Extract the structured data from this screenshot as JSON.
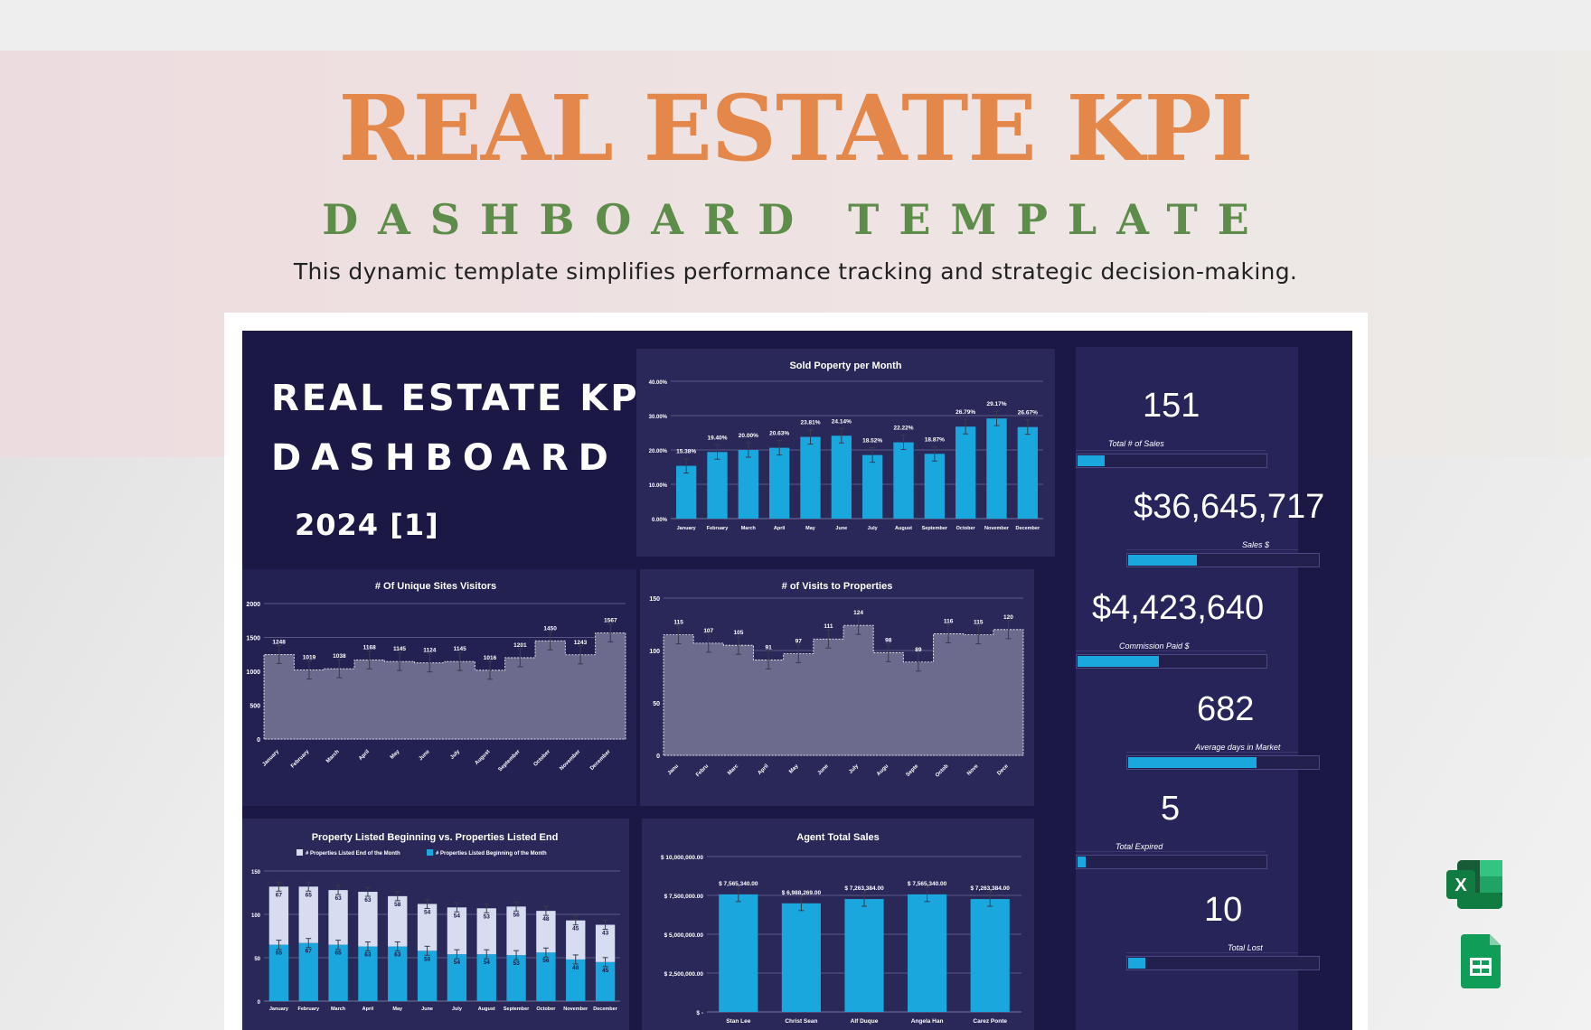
{
  "hero": {
    "title": "REAL ESTATE KPI",
    "subtitle": "DASHBOARD TEMPLATE",
    "description": "This dynamic template simplifies performance tracking and strategic decision-making."
  },
  "dashboard": {
    "title_line1": "REAL ESTATE KPI",
    "title_line2": "DASHBOARD",
    "period": "2024 [1]"
  },
  "kpis": [
    {
      "value": "151",
      "label": "Total # of Sales",
      "fill_fraction": 0.15
    },
    {
      "value": "$36,645,717",
      "label": "Sales $",
      "fill_fraction": 0.37
    },
    {
      "value": "$4,423,640",
      "label": "Commission Paid $",
      "fill_fraction": 0.44
    },
    {
      "value": "682",
      "label": "Average days in Market",
      "fill_fraction": 0.68
    },
    {
      "value": "5",
      "label": "Total Expired",
      "fill_fraction": 0.05
    },
    {
      "value": "10",
      "label": "Total Lost",
      "fill_fraction": 0.1
    }
  ],
  "colors": {
    "accent": "#1aa7de",
    "light_bar": "#d6ddf0",
    "area": "#6c6b8e",
    "dash_bg": "#1b1845",
    "panel_bg": "#2a2858",
    "hero_orange": "#e3874a",
    "hero_green": "#5e8c4a"
  },
  "icons": [
    "excel-icon",
    "sheets-icon"
  ],
  "chart_data": [
    {
      "id": "sold",
      "type": "bar",
      "title": "Sold Poperty per Month",
      "categories": [
        "January",
        "February",
        "March",
        "April",
        "May",
        "June",
        "July",
        "August",
        "September",
        "October",
        "November",
        "December"
      ],
      "values": [
        15.38,
        19.4,
        20.0,
        20.63,
        23.81,
        24.14,
        18.52,
        22.22,
        18.87,
        26.79,
        29.17,
        26.67
      ],
      "data_labels": [
        "15.38%",
        "19.40%",
        "20.00%",
        "20.63%",
        "23.81%",
        "24.14%",
        "18.52%",
        "22.22%",
        "18.87%",
        "26.79%",
        "29.17%",
        "26.67%"
      ],
      "ylim": [
        0,
        40
      ],
      "yticks": [
        "0.00%",
        "10.00%",
        "20.00%",
        "30.00%",
        "40.00%"
      ],
      "error_bars": true,
      "grid": true
    },
    {
      "id": "visitors",
      "type": "area",
      "title": "# Of Unique Sites Visitors",
      "categories": [
        "January",
        "February",
        "March",
        "April",
        "May",
        "June",
        "July",
        "August",
        "September",
        "October",
        "November",
        "December"
      ],
      "values": [
        1248,
        1019,
        1038,
        1168,
        1145,
        1124,
        1145,
        1016,
        1201,
        1450,
        1243,
        1567
      ],
      "ylim": [
        0,
        2000
      ],
      "yticks": [
        "0",
        "500",
        "1000",
        "1500",
        "2000"
      ],
      "step": true,
      "error_bars": true,
      "grid": true
    },
    {
      "id": "visits",
      "type": "area",
      "title": "# of Visits to Properties",
      "categories": [
        "Janu",
        "Febru",
        "Marc",
        "April",
        "May",
        "June",
        "July",
        "Augu",
        "Septe",
        "Octob",
        "Nove",
        "Dece"
      ],
      "values": [
        115,
        107,
        105,
        91,
        97,
        111,
        124,
        98,
        89,
        116,
        115,
        120
      ],
      "data_labels": [
        "115",
        "107",
        "105",
        "91",
        "97",
        "111",
        "124",
        "98",
        "89",
        "116",
        "115",
        "120"
      ],
      "ylim": [
        0,
        150
      ],
      "yticks": [
        "0",
        "50",
        "100",
        "150"
      ],
      "step": true,
      "error_bars": true,
      "grid": true
    },
    {
      "id": "listed",
      "type": "bar",
      "stacked": true,
      "title": "Property Listed Beginning vs. Properties Listed End",
      "categories": [
        "January",
        "February",
        "March",
        "April",
        "May",
        "June",
        "July",
        "August",
        "September",
        "October",
        "November",
        "December"
      ],
      "series": [
        {
          "name": "# Properties Listed Beginning of the Month",
          "values": [
            65,
            67,
            65,
            63,
            63,
            58,
            54,
            54,
            53,
            56,
            48,
            45
          ]
        },
        {
          "name": "# Properties Listed End of the Month",
          "values": [
            67,
            65,
            63,
            63,
            58,
            54,
            54,
            53,
            56,
            48,
            45,
            43
          ]
        }
      ],
      "ylim": [
        0,
        150
      ],
      "yticks": [
        "0",
        "50",
        "100",
        "150"
      ],
      "legend": "top",
      "error_bars": true,
      "grid": true
    },
    {
      "id": "agents",
      "type": "bar",
      "title": "Agent Total Sales",
      "categories": [
        "Stan Lee",
        "Christ Sean",
        "Alf Duque",
        "Angela Han",
        "Carez Ponte"
      ],
      "values": [
        7565340,
        6988269,
        7263384,
        7565340,
        7263384
      ],
      "data_labels": [
        "$ 7,565,340.00",
        "$ 6,988,269.00",
        "$ 7,263,384.00",
        "$ 7,565,340.00",
        "$ 7,263,384.00"
      ],
      "ylim": [
        0,
        10000000
      ],
      "yticks": [
        "$ -",
        "$ 2,500,000.00",
        "$ 5,000,000.00",
        "$ 7,500,000.00",
        "$ 10,000,000.00"
      ],
      "error_bars": true,
      "grid": true
    }
  ]
}
